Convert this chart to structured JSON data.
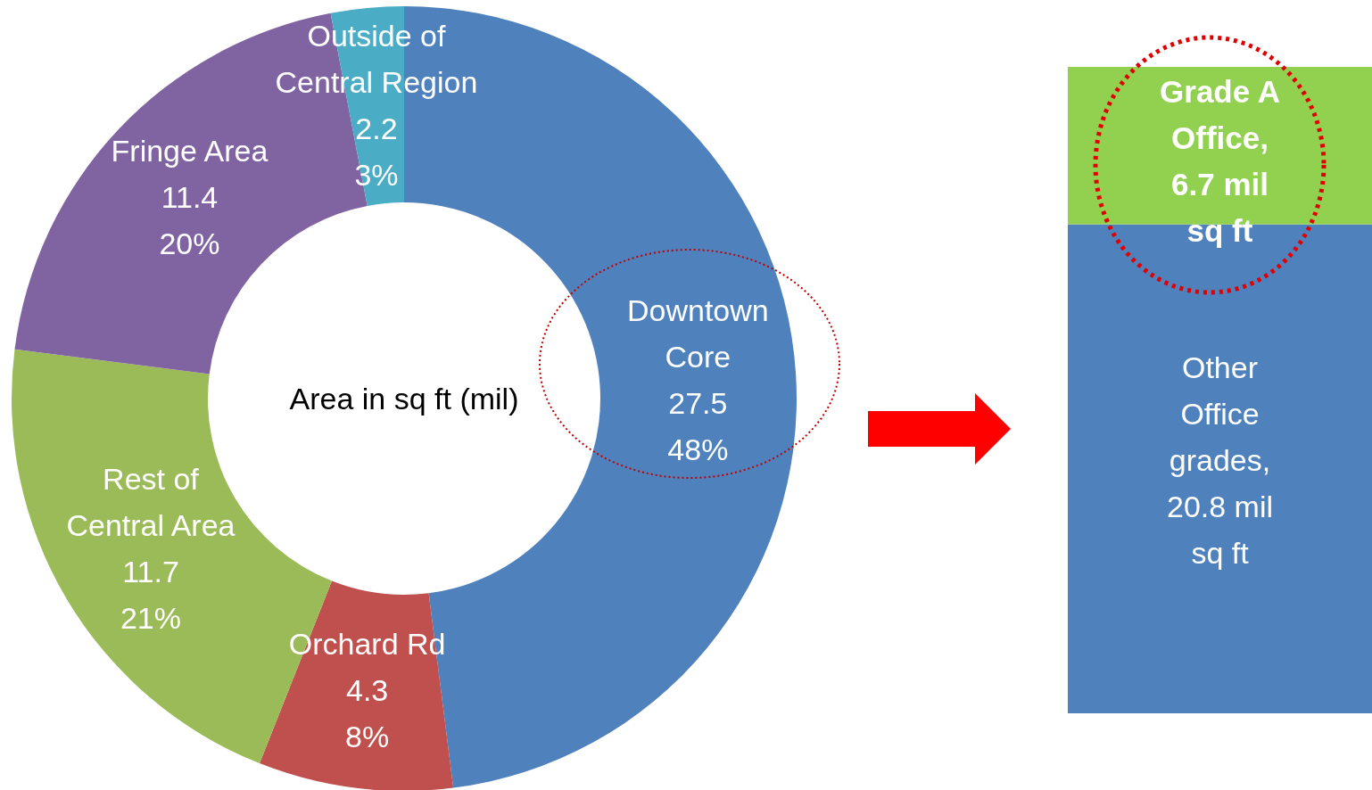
{
  "chart_data": [
    {
      "type": "donut",
      "annotations": [
        "Area in sq ft (mil)"
      ],
      "categories": [
        "Downtown Core",
        "Orchard Rd",
        "Rest of Central Area",
        "Fringe Area",
        "Outside of Central Region"
      ],
      "values": [
        48,
        8,
        21,
        20,
        3
      ],
      "colors": [
        "#4f81bd",
        "#c0504d",
        "#9bbb59",
        "#8064a2",
        "#4bacc6"
      ],
      "value_labels": [
        "27.5\n48%",
        "4.3\n8%",
        "11.7\n21%",
        "11.4\n20%",
        "2.2\n3%"
      ]
    },
    {
      "type": "bar",
      "stacked": true,
      "categories": [
        null
      ],
      "series": [
        {
          "name": "Other Office grades,",
          "color": "#4f81bd",
          "values": [
            20.8
          ],
          "value_labels": [
            "20.8 mil sq ft"
          ]
        },
        {
          "name": "Grade A Office,",
          "color": "#92d050",
          "values": [
            6.7
          ],
          "value_labels": [
            "6.7 mil sq ft"
          ]
        }
      ]
    }
  ]
}
